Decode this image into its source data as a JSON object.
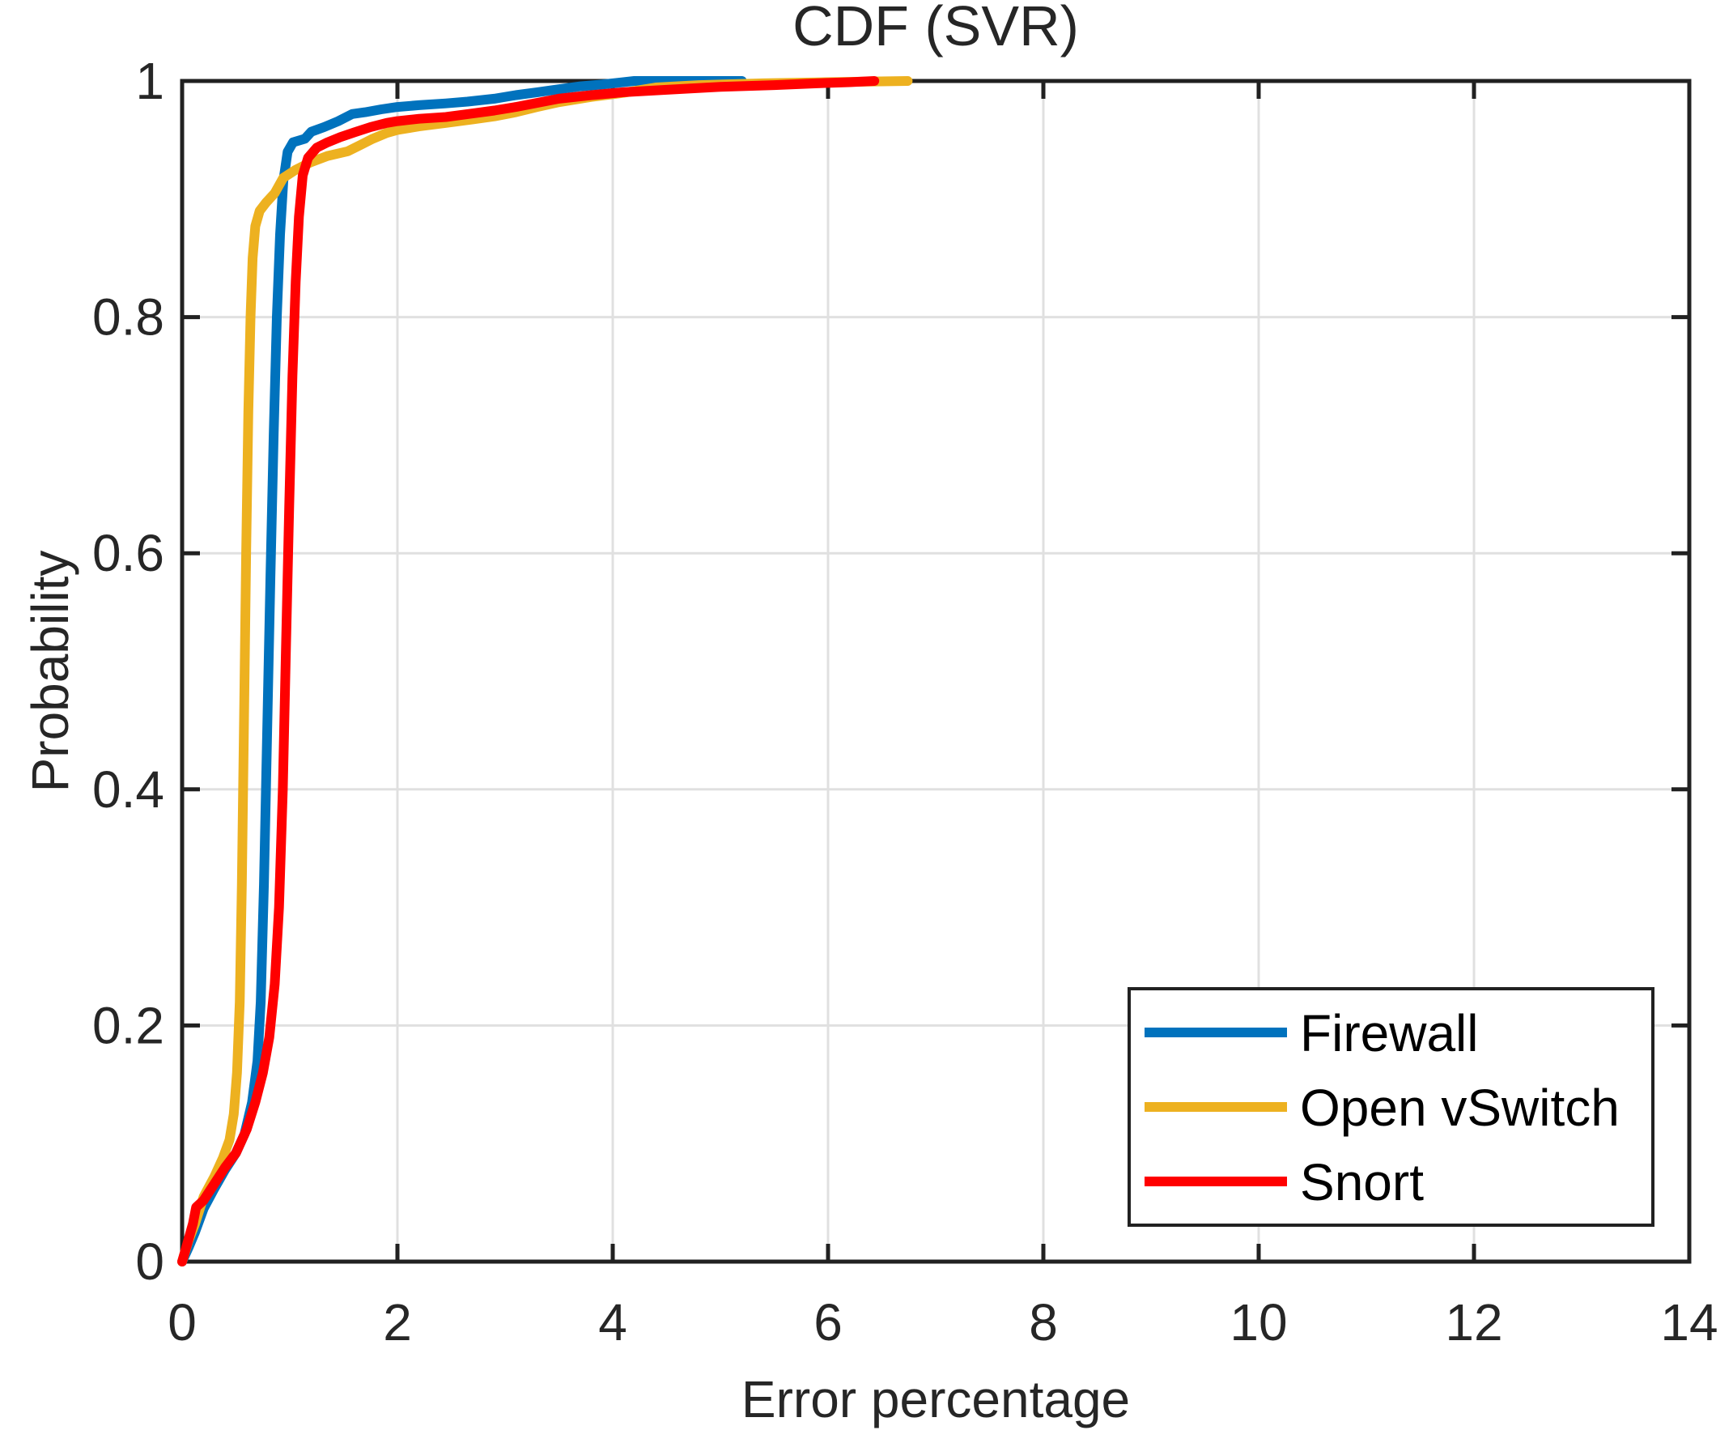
{
  "figure": {
    "kind": "MATLAB-style CDF figure",
    "background": "#ffffff",
    "axis_color": "#212121",
    "grid_color": "#e0e0e0",
    "text_color": "#262626"
  },
  "chart_data": {
    "type": "line",
    "title": "CDF (SVR)",
    "xlabel": "Error percentage",
    "ylabel": "Probability",
    "xlim": [
      0,
      14
    ],
    "ylim": [
      0,
      1
    ],
    "x_ticks": [
      0,
      2,
      4,
      6,
      8,
      10,
      12,
      14
    ],
    "y_ticks": [
      0,
      0.2,
      0.4,
      0.6,
      0.8,
      1
    ],
    "grid": true,
    "legend_position": "bottom-right",
    "series": [
      {
        "name": "Firewall",
        "color": "#0072BD",
        "points": [
          [
            0,
            0
          ],
          [
            0.06,
            0.012
          ],
          [
            0.12,
            0.025
          ],
          [
            0.2,
            0.045
          ],
          [
            0.3,
            0.062
          ],
          [
            0.4,
            0.078
          ],
          [
            0.5,
            0.092
          ],
          [
            0.58,
            0.108
          ],
          [
            0.65,
            0.135
          ],
          [
            0.7,
            0.17
          ],
          [
            0.73,
            0.22
          ],
          [
            0.76,
            0.32
          ],
          [
            0.79,
            0.45
          ],
          [
            0.82,
            0.58
          ],
          [
            0.85,
            0.7
          ],
          [
            0.88,
            0.8
          ],
          [
            0.91,
            0.87
          ],
          [
            0.94,
            0.915
          ],
          [
            0.98,
            0.94
          ],
          [
            1.03,
            0.948
          ],
          [
            1.14,
            0.951
          ],
          [
            1.2,
            0.957
          ],
          [
            1.32,
            0.961
          ],
          [
            1.45,
            0.966
          ],
          [
            1.58,
            0.972
          ],
          [
            1.7,
            0.9735
          ],
          [
            1.85,
            0.976
          ],
          [
            2.0,
            0.978
          ],
          [
            2.2,
            0.9795
          ],
          [
            2.45,
            0.981
          ],
          [
            2.65,
            0.9825
          ],
          [
            2.9,
            0.985
          ],
          [
            3.1,
            0.988
          ],
          [
            3.3,
            0.9905
          ],
          [
            3.5,
            0.993
          ],
          [
            3.7,
            0.9955
          ],
          [
            3.9,
            0.997
          ],
          [
            4.05,
            0.9985
          ],
          [
            4.2,
            1.0
          ],
          [
            5.2,
            1.0
          ]
        ]
      },
      {
        "name": "Open vSwitch",
        "color": "#EDB120",
        "points": [
          [
            0,
            0
          ],
          [
            0.06,
            0.018
          ],
          [
            0.12,
            0.032
          ],
          [
            0.2,
            0.055
          ],
          [
            0.3,
            0.072
          ],
          [
            0.38,
            0.088
          ],
          [
            0.44,
            0.103
          ],
          [
            0.48,
            0.125
          ],
          [
            0.51,
            0.16
          ],
          [
            0.535,
            0.22
          ],
          [
            0.555,
            0.32
          ],
          [
            0.575,
            0.46
          ],
          [
            0.595,
            0.6
          ],
          [
            0.615,
            0.72
          ],
          [
            0.635,
            0.8
          ],
          [
            0.655,
            0.85
          ],
          [
            0.68,
            0.877
          ],
          [
            0.72,
            0.89
          ],
          [
            0.78,
            0.897
          ],
          [
            0.86,
            0.905
          ],
          [
            0.94,
            0.918
          ],
          [
            1.05,
            0.9245
          ],
          [
            1.19,
            0.931
          ],
          [
            1.35,
            0.9365
          ],
          [
            1.54,
            0.9405
          ],
          [
            1.65,
            0.9455
          ],
          [
            1.77,
            0.951
          ],
          [
            1.9,
            0.956
          ],
          [
            2.0,
            0.9585
          ],
          [
            2.2,
            0.9615
          ],
          [
            2.45,
            0.9645
          ],
          [
            2.7,
            0.9675
          ],
          [
            2.9,
            0.97
          ],
          [
            3.1,
            0.9735
          ],
          [
            3.3,
            0.978
          ],
          [
            3.5,
            0.982
          ],
          [
            3.8,
            0.9865
          ],
          [
            4.1,
            0.99
          ],
          [
            4.4,
            0.9945
          ],
          [
            4.8,
            0.9965
          ],
          [
            5.4,
            0.998
          ],
          [
            6.0,
            0.999
          ],
          [
            6.74,
            1.0
          ]
        ]
      },
      {
        "name": "Snort",
        "color": "#FF0000",
        "points": [
          [
            0,
            0
          ],
          [
            0.05,
            0.016
          ],
          [
            0.1,
            0.032
          ],
          [
            0.13,
            0.046
          ],
          [
            0.2,
            0.052
          ],
          [
            0.3,
            0.066
          ],
          [
            0.4,
            0.08
          ],
          [
            0.5,
            0.092
          ],
          [
            0.6,
            0.112
          ],
          [
            0.68,
            0.135
          ],
          [
            0.75,
            0.16
          ],
          [
            0.81,
            0.19
          ],
          [
            0.86,
            0.235
          ],
          [
            0.9,
            0.3
          ],
          [
            0.935,
            0.4
          ],
          [
            0.965,
            0.52
          ],
          [
            0.995,
            0.64
          ],
          [
            1.025,
            0.75
          ],
          [
            1.055,
            0.83
          ],
          [
            1.085,
            0.885
          ],
          [
            1.12,
            0.92
          ],
          [
            1.17,
            0.935
          ],
          [
            1.25,
            0.9435
          ],
          [
            1.35,
            0.948
          ],
          [
            1.47,
            0.9525
          ],
          [
            1.6,
            0.9565
          ],
          [
            1.75,
            0.961
          ],
          [
            1.9,
            0.9645
          ],
          [
            2.0,
            0.966
          ],
          [
            2.2,
            0.968
          ],
          [
            2.45,
            0.9695
          ],
          [
            2.7,
            0.9725
          ],
          [
            2.9,
            0.975
          ],
          [
            3.1,
            0.978
          ],
          [
            3.3,
            0.9815
          ],
          [
            3.5,
            0.985
          ],
          [
            3.8,
            0.988
          ],
          [
            4.1,
            0.9905
          ],
          [
            4.5,
            0.9925
          ],
          [
            5.0,
            0.995
          ],
          [
            5.5,
            0.9965
          ],
          [
            5.9,
            0.998
          ],
          [
            6.2,
            0.999
          ],
          [
            6.43,
            1.0
          ]
        ]
      }
    ]
  },
  "legend": {
    "items": [
      {
        "label": "Firewall",
        "color": "#0072BD",
        "swatch": "line"
      },
      {
        "label": "Open vSwitch",
        "color": "#EDB120",
        "swatch": "line"
      },
      {
        "label": "Snort",
        "color": "#FF0000",
        "swatch": "line"
      }
    ]
  }
}
